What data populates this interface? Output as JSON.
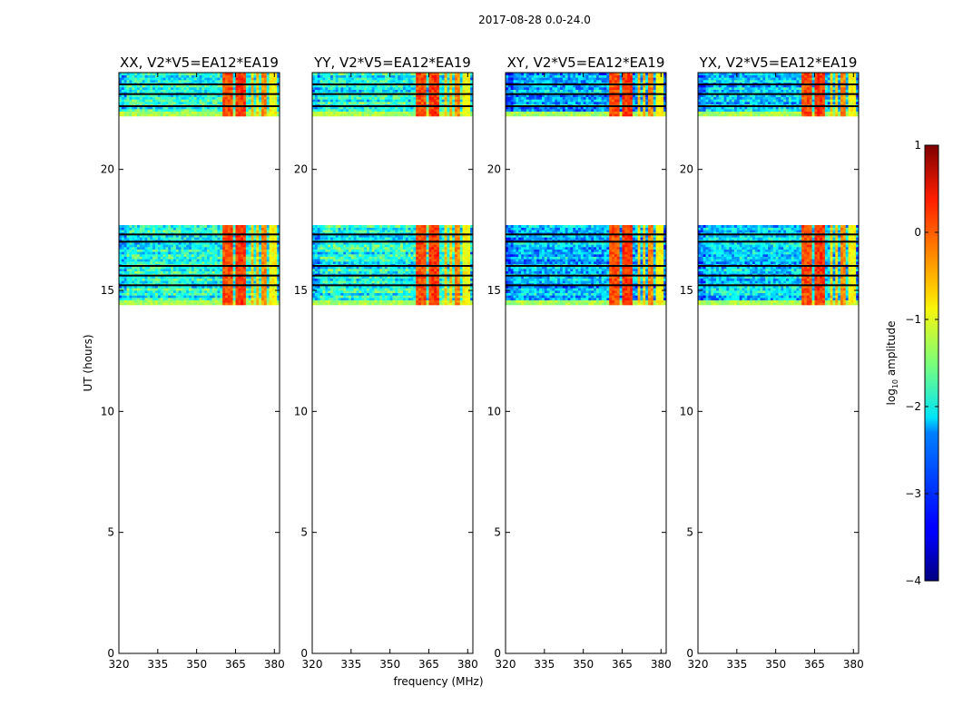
{
  "chart_data": {
    "type": "heatmap",
    "suptitle": "2017-08-28 0.0-24.0",
    "xlabel": "frequency (MHz)",
    "ylabel": "UT (hours)",
    "xlim": [
      320,
      382
    ],
    "ylim": [
      0,
      24
    ],
    "xticks": [
      320,
      335,
      350,
      365,
      380
    ],
    "yticks": [
      0,
      5,
      10,
      15,
      20
    ],
    "panels": [
      {
        "title": "XX, V2*V5=EA12*EA19",
        "base_level": -2.0
      },
      {
        "title": "YY, V2*V5=EA12*EA19",
        "base_level": -2.0
      },
      {
        "title": "XY, V2*V5=EA12*EA19",
        "base_level": -2.5
      },
      {
        "title": "YX, V2*V5=EA12*EA19",
        "base_level": -2.3
      }
    ],
    "data_time_ranges_hours": [
      [
        14.4,
        17.7
      ],
      [
        22.2,
        24.0
      ]
    ],
    "flagged_time_rows_hours": [
      17.3,
      17.0,
      16.0,
      15.6,
      15.2,
      22.6,
      23.5,
      23.1
    ],
    "rfi_bands_mhz": [
      {
        "start": 360.0,
        "end": 364.0,
        "level": 0.0
      },
      {
        "start": 365.0,
        "end": 369.0,
        "level": 0.1
      },
      {
        "start": 370.5,
        "end": 371.5,
        "level": -0.6
      },
      {
        "start": 373.0,
        "end": 374.0,
        "level": -0.6
      },
      {
        "start": 375.0,
        "end": 376.5,
        "level": -0.3
      },
      {
        "start": 378.0,
        "end": 380.5,
        "level": -0.9
      }
    ],
    "colorbar": {
      "label": "log",
      "label_sub": "10",
      "label_suffix": " amplitude",
      "range": [
        -4,
        1
      ],
      "ticks": [
        -4,
        -3,
        -2,
        -1,
        0,
        1
      ],
      "tick_labels": [
        "−4",
        "−3",
        "−2",
        "−1",
        "0",
        "1"
      ],
      "colormap": "jet"
    }
  }
}
